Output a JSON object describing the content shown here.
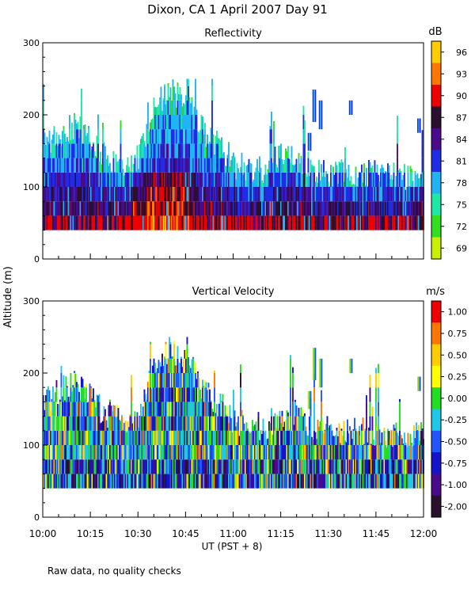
{
  "title": "Dixon, CA   1 April 2007   Day   91",
  "y_label": "Altitude  (m)",
  "x_label": "UT   (PST + 8)",
  "x_ticks": [
    "10:00",
    "10:15",
    "10:30",
    "10:45",
    "11:00",
    "11:15",
    "11:30",
    "11:45",
    "12:00"
  ],
  "footer_note": "Raw data, no quality checks",
  "chart_data": [
    {
      "type": "heatmap",
      "title": "Reflectivity",
      "units": "dB",
      "xlim": [
        "10:00",
        "12:00"
      ],
      "xlim_minutes": [
        0,
        120
      ],
      "ylim": [
        0,
        300
      ],
      "y_ticks": [
        0,
        100,
        200,
        300
      ],
      "colorbar_ticks": [
        "96",
        "93",
        "90",
        "87",
        "84",
        "81",
        "78",
        "75",
        "72",
        "69"
      ],
      "colorbar_colors": [
        "#ffcc00",
        "#ff7700",
        "#ee0000",
        "#2a0f2e",
        "#4a0a8c",
        "#1f2ee6",
        "#20b4f4",
        "#1ee8a6",
        "#33dd22",
        "#c8f000"
      ],
      "echo_base_m": 40,
      "echo_top_m_by_time": [
        {
          "t": 0,
          "top": 160
        },
        {
          "t": 5,
          "top": 175
        },
        {
          "t": 10,
          "top": 185
        },
        {
          "t": 15,
          "top": 165
        },
        {
          "t": 20,
          "top": 140
        },
        {
          "t": 25,
          "top": 135
        },
        {
          "t": 30,
          "top": 140
        },
        {
          "t": 35,
          "top": 210
        },
        {
          "t": 40,
          "top": 235
        },
        {
          "t": 45,
          "top": 220
        },
        {
          "t": 50,
          "top": 180
        },
        {
          "t": 55,
          "top": 160
        },
        {
          "t": 60,
          "top": 130
        },
        {
          "t": 70,
          "top": 125
        },
        {
          "t": 75,
          "top": 145
        },
        {
          "t": 80,
          "top": 135
        },
        {
          "t": 90,
          "top": 120
        },
        {
          "t": 100,
          "top": 120
        },
        {
          "t": 110,
          "top": 115
        },
        {
          "t": 120,
          "top": 115
        }
      ],
      "isolated_echoes": [
        {
          "t": 83.5,
          "base": 150,
          "top": 175
        },
        {
          "t": 85,
          "base": 190,
          "top": 235
        },
        {
          "t": 87,
          "base": 180,
          "top": 220
        },
        {
          "t": 96.5,
          "base": 200,
          "top": 220
        },
        {
          "t": 118,
          "base": 175,
          "top": 195
        }
      ]
    },
    {
      "type": "heatmap",
      "title": "Vertical Velocity",
      "units": "m/s",
      "xlim": [
        "10:00",
        "12:00"
      ],
      "xlim_minutes": [
        0,
        120
      ],
      "ylim": [
        0,
        300
      ],
      "y_ticks": [
        0,
        100,
        200,
        300
      ],
      "colorbar_ticks": [
        "1.00",
        "0.75",
        "0.50",
        "0.25",
        "0.00",
        "-0.25",
        "-0.50",
        "-0.75",
        "-1.00",
        "-2.00"
      ],
      "colorbar_colors": [
        "#ee0000",
        "#ff7700",
        "#ffcc00",
        "#ffff00",
        "#22dd22",
        "#20c8e8",
        "#2255ff",
        "#1414c8",
        "#4a0a8c",
        "#2a0f2e"
      ],
      "echo_base_m": 40,
      "echo_top_m_by_time": [
        {
          "t": 0,
          "top": 160
        },
        {
          "t": 5,
          "top": 175
        },
        {
          "t": 10,
          "top": 185
        },
        {
          "t": 15,
          "top": 165
        },
        {
          "t": 20,
          "top": 140
        },
        {
          "t": 25,
          "top": 135
        },
        {
          "t": 30,
          "top": 140
        },
        {
          "t": 35,
          "top": 210
        },
        {
          "t": 40,
          "top": 235
        },
        {
          "t": 45,
          "top": 220
        },
        {
          "t": 50,
          "top": 180
        },
        {
          "t": 55,
          "top": 160
        },
        {
          "t": 60,
          "top": 130
        },
        {
          "t": 70,
          "top": 125
        },
        {
          "t": 75,
          "top": 145
        },
        {
          "t": 80,
          "top": 135
        },
        {
          "t": 90,
          "top": 120
        },
        {
          "t": 100,
          "top": 120
        },
        {
          "t": 110,
          "top": 115
        },
        {
          "t": 120,
          "top": 115
        }
      ],
      "isolated_echoes": [
        {
          "t": 83.5,
          "base": 150,
          "top": 175
        },
        {
          "t": 85,
          "base": 190,
          "top": 235
        },
        {
          "t": 87,
          "base": 180,
          "top": 220
        },
        {
          "t": 96.5,
          "base": 200,
          "top": 220
        },
        {
          "t": 118,
          "base": 175,
          "top": 195
        }
      ]
    }
  ]
}
